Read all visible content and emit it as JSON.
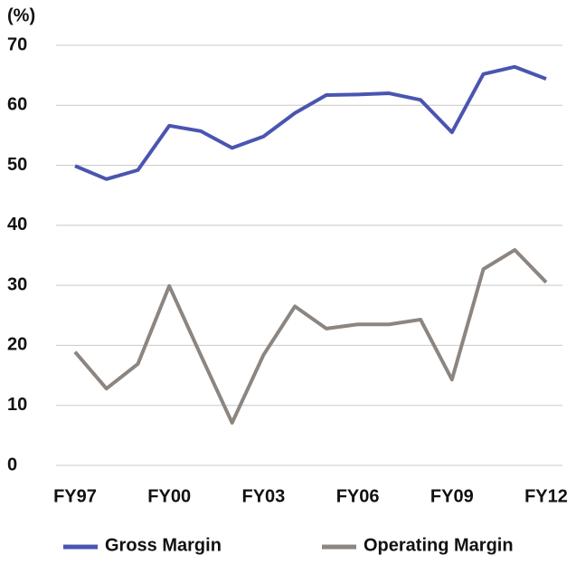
{
  "chart_data": {
    "type": "line",
    "y_label": "(%)",
    "categories": [
      "FY97",
      null,
      null,
      "FY00",
      null,
      null,
      "FY03",
      null,
      null,
      "FY06",
      null,
      null,
      "FY09",
      null,
      null,
      "FY12"
    ],
    "series": [
      {
        "name": "Gross Margin",
        "color": "#4a55b0",
        "values": [
          49.9,
          47.7,
          49.2,
          56.6,
          55.7,
          52.9,
          54.8,
          58.7,
          61.7,
          61.8,
          62,
          60.9,
          55.5,
          65.2,
          66.4,
          64.4
        ]
      },
      {
        "name": "Operating Margin",
        "color": "#8c8580",
        "values": [
          18.9,
          12.8,
          16.9,
          29.9,
          18.4,
          7.1,
          18.4,
          26.5,
          22.8,
          23.5,
          23.5,
          24.3,
          14.3,
          32.7,
          35.9,
          30.5
        ]
      }
    ],
    "ylim": [
      0,
      70
    ],
    "yticks": [
      0,
      10,
      20,
      30,
      40,
      50,
      60,
      70
    ],
    "grid": true,
    "legend": "bottom"
  }
}
